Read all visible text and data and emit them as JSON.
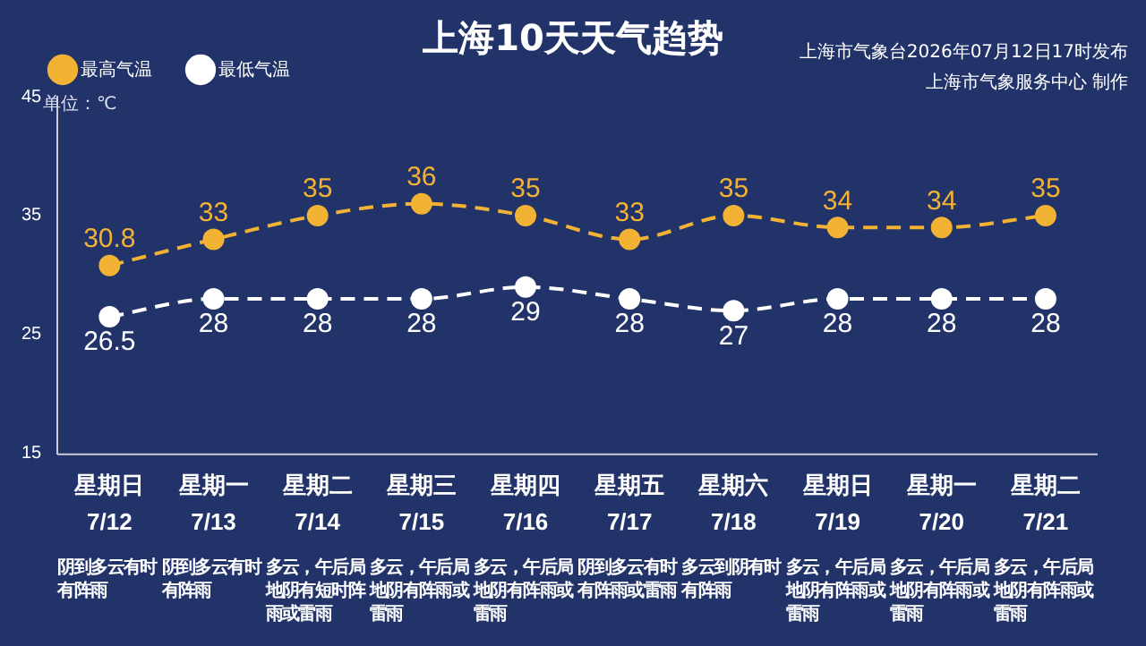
{
  "chart_data": {
    "type": "line",
    "title": "上海10天天气趋势",
    "ylabel": "单位：℃",
    "categories": [
      "星期日\n7/12",
      "星期一\n7/13",
      "星期二\n7/14",
      "星期三\n7/15",
      "星期四\n7/16",
      "星期五\n7/17",
      "星期六\n7/18",
      "星期日\n7/19",
      "星期一\n7/20",
      "星期二\n7/21"
    ],
    "series": [
      {
        "name": "最高气温",
        "color": "#f2b233",
        "values": [
          30.8,
          33,
          35,
          36,
          35,
          33,
          35,
          34,
          34,
          35
        ]
      },
      {
        "name": "最低气温",
        "color": "#ffffff",
        "values": [
          26.5,
          28,
          28,
          28,
          29,
          28,
          27,
          28,
          28,
          28
        ]
      }
    ],
    "ylim": [
      15,
      45
    ],
    "yticks": [
      15,
      25,
      35,
      45
    ],
    "legend": "top left",
    "marker": "circle",
    "line_style": "dashed",
    "data_labels": true,
    "annotations": [
      "上海市气象台2026年07月12日17时发布",
      "上海市气象服务中心  制作",
      "阴到多云有时有阵雨",
      "阴到多云有时有阵雨",
      "多云，午后局地阴有短时阵雨或雷雨",
      "多云，午后局地阴有阵雨或雷雨",
      "多云，午后局地阴有阵雨或雷雨",
      "阴到多云有时有阵雨或雷雨",
      "多云到阴有时有阵雨",
      "多云，午后局地阴有阵雨或雷雨",
      "多云，午后局地阴有阵雨或雷雨",
      "多云，午后局地阴有阵雨或雷雨"
    ]
  }
}
